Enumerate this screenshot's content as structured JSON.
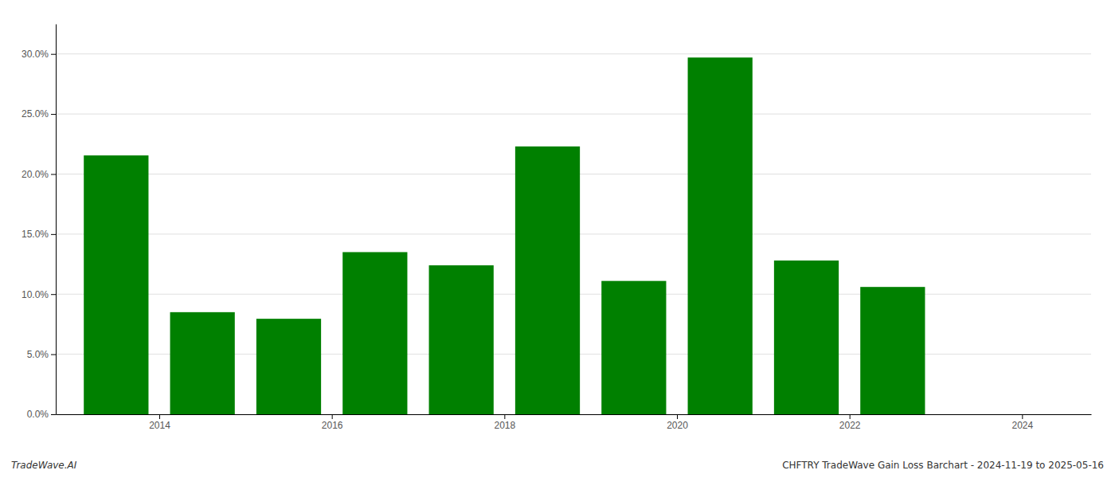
{
  "chart_data": {
    "type": "bar",
    "x": [
      2014,
      2015,
      2016,
      2017,
      2018,
      2019,
      2020,
      2021,
      2022,
      2023,
      2024
    ],
    "values": [
      0.2155,
      0.085,
      0.0795,
      0.135,
      0.124,
      0.223,
      0.111,
      0.297,
      0.128,
      0.106,
      0.0
    ],
    "color": "#008000",
    "xlim": [
      2013.3,
      2025.3
    ],
    "xticks": [
      {
        "value": 2014.5,
        "label": "2014"
      },
      {
        "value": 2016.5,
        "label": "2016"
      },
      {
        "value": 2018.5,
        "label": "2018"
      },
      {
        "value": 2020.5,
        "label": "2020"
      },
      {
        "value": 2022.5,
        "label": "2022"
      },
      {
        "value": 2024.5,
        "label": "2024"
      }
    ],
    "ylim": [
      0,
      0.325
    ],
    "yticks": [
      {
        "value": 0.0,
        "label": "0.0%"
      },
      {
        "value": 0.05,
        "label": "5.0%"
      },
      {
        "value": 0.1,
        "label": "10.0%"
      },
      {
        "value": 0.15,
        "label": "15.0%"
      },
      {
        "value": 0.2,
        "label": "20.0%"
      },
      {
        "value": 0.25,
        "label": "25.0%"
      },
      {
        "value": 0.3,
        "label": "30.0%"
      }
    ],
    "grid": true,
    "annotations": [
      "TradeWave.AI",
      "CHFTRY TradeWave Gain Loss Barchart - 2024-11-19 to 2025-05-16"
    ]
  }
}
